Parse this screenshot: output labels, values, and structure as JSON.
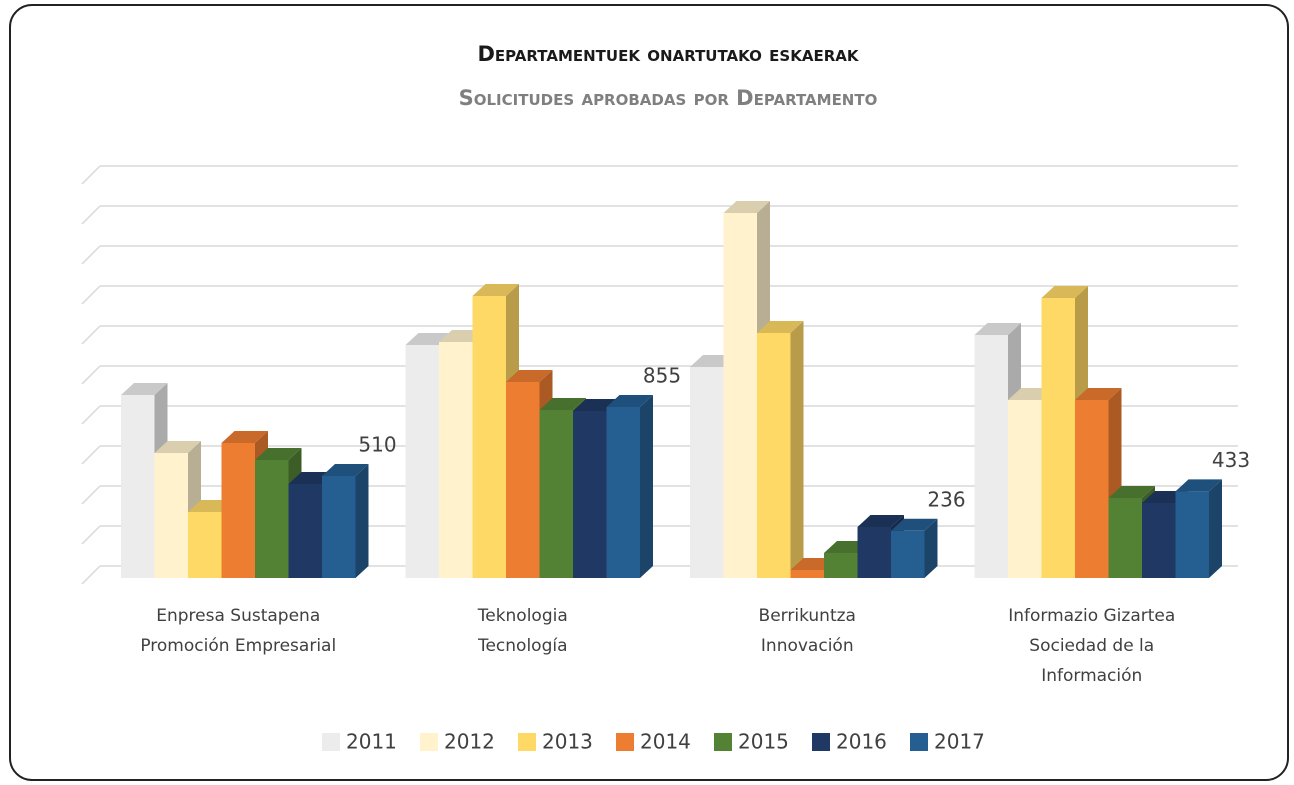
{
  "chart_data": {
    "type": "bar3d",
    "title": "Departamentuek onartutako eskaerak",
    "subtitle": "Solicitudes aprobadas por Departamento",
    "categories": [
      [
        "Enpresa Sustapena",
        "Promoción Empresarial"
      ],
      [
        "Teknologia",
        "Tecnología"
      ],
      [
        "Berrikuntza",
        "Innovación"
      ],
      [
        "Informazio Gizartea",
        "Sociedad de la",
        "Información"
      ]
    ],
    "series": [
      {
        "name": "2011",
        "color": "#ececec",
        "values": [
          915,
          1165,
          1055,
          1215
        ]
      },
      {
        "name": "2012",
        "color": "#fff2cc",
        "values": [
          625,
          1180,
          1825,
          890
        ]
      },
      {
        "name": "2013",
        "color": "#ffd966",
        "values": [
          330,
          1410,
          1225,
          1400
        ]
      },
      {
        "name": "2014",
        "color": "#ed7d31",
        "values": [
          675,
          980,
          40,
          890
        ]
      },
      {
        "name": "2015",
        "color": "#548235",
        "values": [
          590,
          840,
          125,
          400
        ]
      },
      {
        "name": "2016",
        "color": "#203864",
        "values": [
          470,
          835,
          255,
          375
        ]
      },
      {
        "name": "2017",
        "color": "#255e91",
        "values": [
          510,
          855,
          236,
          433
        ],
        "show_labels": true
      }
    ],
    "ylim": [
      0,
      2000
    ],
    "yticks": [
      0,
      200,
      400,
      600,
      800,
      1000,
      1200,
      1400,
      1600,
      1800,
      2000
    ],
    "grid": true,
    "legend": "bottom"
  }
}
